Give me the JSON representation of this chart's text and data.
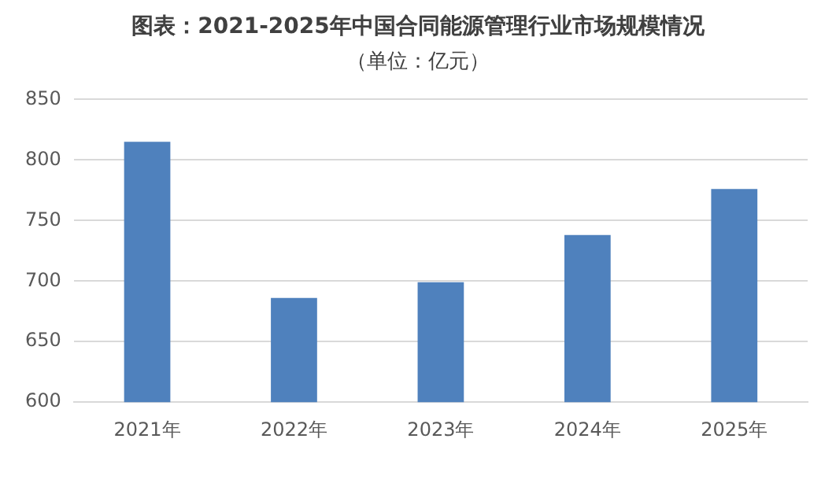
{
  "chart_data": {
    "type": "bar",
    "title": "图表：2021-2025年中国合同能源管理行业市场规模情况",
    "subtitle": "（单位：亿元）",
    "categories": [
      "2021年",
      "2022年",
      "2023年",
      "2024年",
      "2025年"
    ],
    "values": [
      815,
      686,
      699,
      738,
      776
    ],
    "color": "#4f81bd",
    "ylim": [
      600,
      850
    ],
    "yticks": [
      600,
      650,
      700,
      750,
      800,
      850
    ],
    "grid": "y",
    "legend": false
  }
}
